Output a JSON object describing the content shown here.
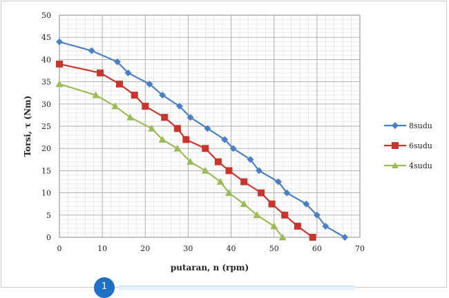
{
  "chart_data": {
    "type": "line",
    "title": "",
    "xlabel": "putaran, n (rpm)",
    "ylabel": "Torsi, τ (Nm)",
    "xlim": [
      0,
      70
    ],
    "ylim": [
      0,
      50
    ],
    "x_ticks": [
      "0",
      "10",
      "20",
      "30",
      "40",
      "50",
      "60",
      "70"
    ],
    "y_ticks": [
      "0",
      "5",
      "10",
      "15",
      "20",
      "25",
      "30",
      "35",
      "40",
      "45",
      "50"
    ],
    "grid": true,
    "legend_position": "right",
    "series": [
      {
        "name": "8sudu",
        "color": "#4a7fc1",
        "marker": "diamond",
        "x": [
          0,
          7.5,
          13.5,
          16,
          21,
          24,
          28,
          30.5,
          34.5,
          38.5,
          40.5,
          44.5,
          46.5,
          51,
          53,
          57.5,
          60,
          62,
          66.5
        ],
        "y": [
          44,
          42,
          39.5,
          37,
          34.5,
          32,
          29.5,
          27,
          24.5,
          22,
          20,
          17.5,
          15,
          12.5,
          10,
          7.5,
          5,
          2.5,
          0
        ]
      },
      {
        "name": "6sudu",
        "color": "#c8352c",
        "marker": "square",
        "x": [
          0,
          9.5,
          14,
          17.5,
          20,
          24.5,
          27.5,
          29.5,
          34,
          37,
          39.5,
          43,
          47,
          49.5,
          52.5,
          55.5,
          59
        ],
        "y": [
          39,
          37,
          34.5,
          32,
          29.5,
          27,
          24.5,
          22,
          20,
          17,
          15,
          12.5,
          10,
          7.5,
          5,
          2.5,
          0
        ]
      },
      {
        "name": "4sudu",
        "color": "#9bbb59",
        "marker": "triangle",
        "x": [
          0,
          8.5,
          13,
          16.5,
          21.5,
          24,
          27.5,
          30.5,
          34,
          37.5,
          39.5,
          43,
          46,
          50,
          52
        ],
        "y": [
          34.5,
          32,
          29.5,
          27,
          24.5,
          22,
          20,
          17,
          15,
          12.5,
          10,
          7.5,
          5,
          2.5,
          0
        ]
      }
    ]
  },
  "annotation": {
    "badge_number": "1"
  }
}
